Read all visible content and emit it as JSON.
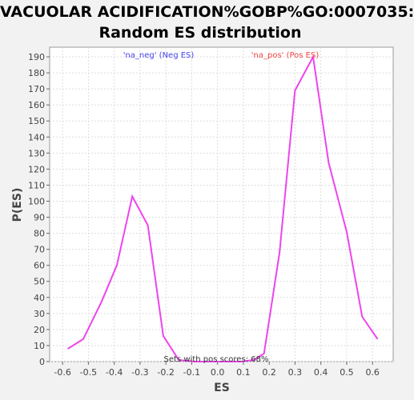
{
  "chart_data": {
    "type": "line",
    "title_line1": "VACUOLAR ACIDIFICATION%GOBP%GO:0007035:",
    "title_line2": "Random ES distribution",
    "xlabel": "ES",
    "ylabel": "P(ES)",
    "xlim": [
      -0.65,
      0.68
    ],
    "ylim": [
      0,
      196
    ],
    "x_ticks": [
      "-0.6",
      "-0.5",
      "-0.4",
      "-0.3",
      "-0.2",
      "-0.1",
      "0.0",
      "0.1",
      "0.2",
      "0.3",
      "0.4",
      "0.5",
      "0.6"
    ],
    "x_tick_values": [
      -0.6,
      -0.5,
      -0.4,
      -0.3,
      -0.2,
      -0.1,
      0.0,
      0.1,
      0.2,
      0.3,
      0.4,
      0.5,
      0.6
    ],
    "y_ticks": [
      0,
      10,
      20,
      30,
      40,
      50,
      60,
      70,
      80,
      90,
      100,
      110,
      120,
      130,
      140,
      150,
      160,
      170,
      180,
      190
    ],
    "grid": true,
    "series": [
      {
        "color": "#ee44ee",
        "x": [
          -0.58,
          -0.52,
          -0.45,
          -0.39,
          -0.33,
          -0.27,
          -0.21,
          -0.15,
          -0.09,
          -0.03,
          0.03,
          0.09,
          0.14,
          0.18,
          0.24,
          0.3,
          0.37,
          0.43,
          0.5,
          0.56,
          0.62
        ],
        "y": [
          8,
          14,
          37,
          60,
          103,
          85,
          16,
          1,
          0,
          0,
          0,
          0,
          1,
          5,
          68,
          169,
          190,
          124,
          81,
          28,
          14
        ]
      }
    ],
    "annotations": {
      "neg": "'na_neg' (Neg ES)",
      "pos": "'na_pos' (Pos ES)",
      "footer": "Sets with pos scores: 68%"
    },
    "colors": {
      "neg": "#4444ee",
      "pos": "#ee4444",
      "line": "#ee44ee"
    }
  }
}
